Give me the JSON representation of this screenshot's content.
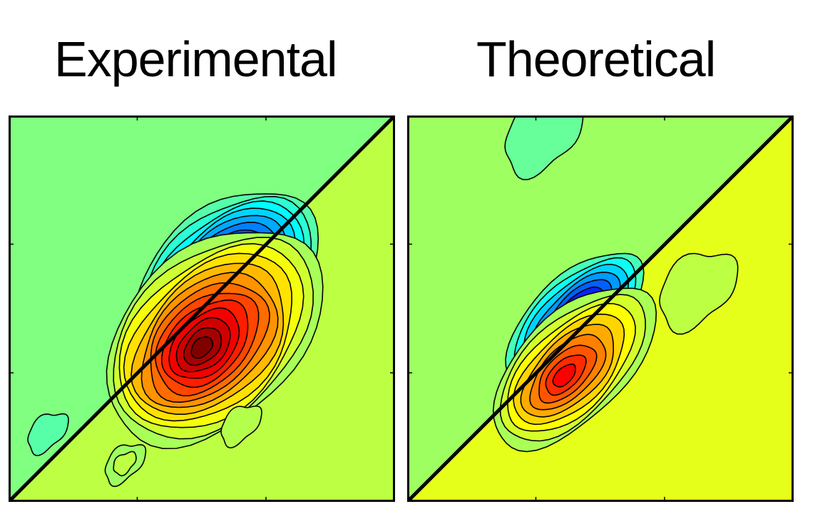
{
  "chart_data": [
    {
      "type": "contour",
      "title": "Experimental",
      "xlabel": "",
      "ylabel": "",
      "grid": false,
      "legend": "none",
      "diagonal": true,
      "colormap": "jet",
      "background_level": 0.0,
      "features": [
        {
          "sign": "negative",
          "peak": -1.0,
          "center": [
            0.56,
            0.57
          ],
          "levels": 12
        },
        {
          "sign": "positive",
          "peak": 1.0,
          "center": [
            0.53,
            0.43
          ],
          "levels": 13
        },
        {
          "sign": "positive-weak",
          "peak": 0.1,
          "center": [
            0.6,
            0.2
          ],
          "levels": 1
        },
        {
          "sign": "negative-weak",
          "peak": -0.08,
          "center": [
            0.1,
            0.18
          ],
          "levels": 1
        },
        {
          "sign": "positive-weak",
          "peak": 0.12,
          "center": [
            0.3,
            0.1
          ],
          "levels": 2
        }
      ]
    },
    {
      "type": "contour",
      "title": "Theoretical",
      "xlabel": "",
      "ylabel": "",
      "grid": false,
      "legend": "none",
      "diagonal": true,
      "colormap": "jet",
      "background_level": 0.05,
      "features": [
        {
          "sign": "negative",
          "peak": -0.9,
          "center": [
            0.43,
            0.47
          ],
          "levels": 8
        },
        {
          "sign": "positive",
          "peak": 0.75,
          "center": [
            0.43,
            0.35
          ],
          "levels": 9
        },
        {
          "sign": "positive-weak",
          "peak": 0.12,
          "center": [
            0.75,
            0.55
          ],
          "levels": 1
        },
        {
          "sign": "negative-weak",
          "peak": -0.05,
          "center": [
            0.35,
            0.95
          ],
          "levels": 1
        }
      ]
    }
  ]
}
